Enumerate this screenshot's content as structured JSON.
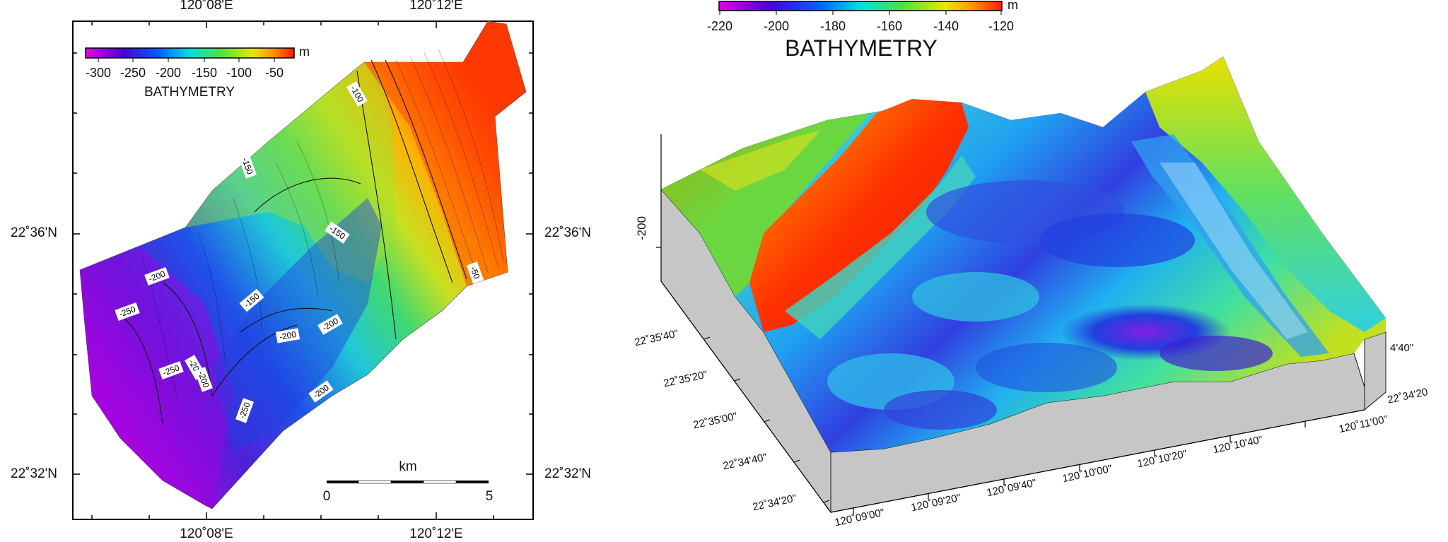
{
  "map2d": {
    "top_ticks": [
      "120˚08'E",
      "120˚12'E"
    ],
    "bottom_ticks": [
      "120˚08'E",
      "120˚12'E"
    ],
    "left_ticks": [
      "22˚36'N",
      "22˚32'N"
    ],
    "right_ticks": [
      "22˚36'N",
      "22˚32'N"
    ],
    "colorbar": {
      "unit": "m",
      "title": "BATHYMETRY",
      "ticks": [
        "-300",
        "-250",
        "-200",
        "-150",
        "-100",
        "-50"
      ]
    },
    "contour_labels": [
      "-100",
      "-150",
      "-150",
      "-200",
      "-250",
      "-150",
      "-200",
      "-200",
      "-250",
      "-200",
      "-200",
      "-250",
      "-200",
      "-50"
    ],
    "scalebar": {
      "unit": "km",
      "start": "0",
      "end": "5"
    }
  },
  "view3d": {
    "colorbar": {
      "unit": "m",
      "title": "BATHYMETRY",
      "ticks": [
        "-220",
        "-200",
        "-180",
        "-160",
        "-140",
        "-120"
      ]
    },
    "z_tick": "-200",
    "lat_ticks": [
      "22˚35'40\"",
      "22˚35'20\"",
      "22˚35'00\"",
      "22˚34'40\"",
      "22˚34'20\""
    ],
    "lon_ticks": [
      "120˚09'00\"",
      "120˚09'20\"",
      "120˚09'40\"",
      "120˚10'00\"",
      "120˚10'20\"",
      "120˚10'40\"",
      "120˚11'00\""
    ],
    "right_lat_ticks": [
      "4'40\"",
      "22˚34'20"
    ]
  },
  "colors": {
    "deep": "#b000e0",
    "mid": "#00c8d8",
    "shallow": "#ff2a00",
    "skirt": "#c6c6c6"
  }
}
